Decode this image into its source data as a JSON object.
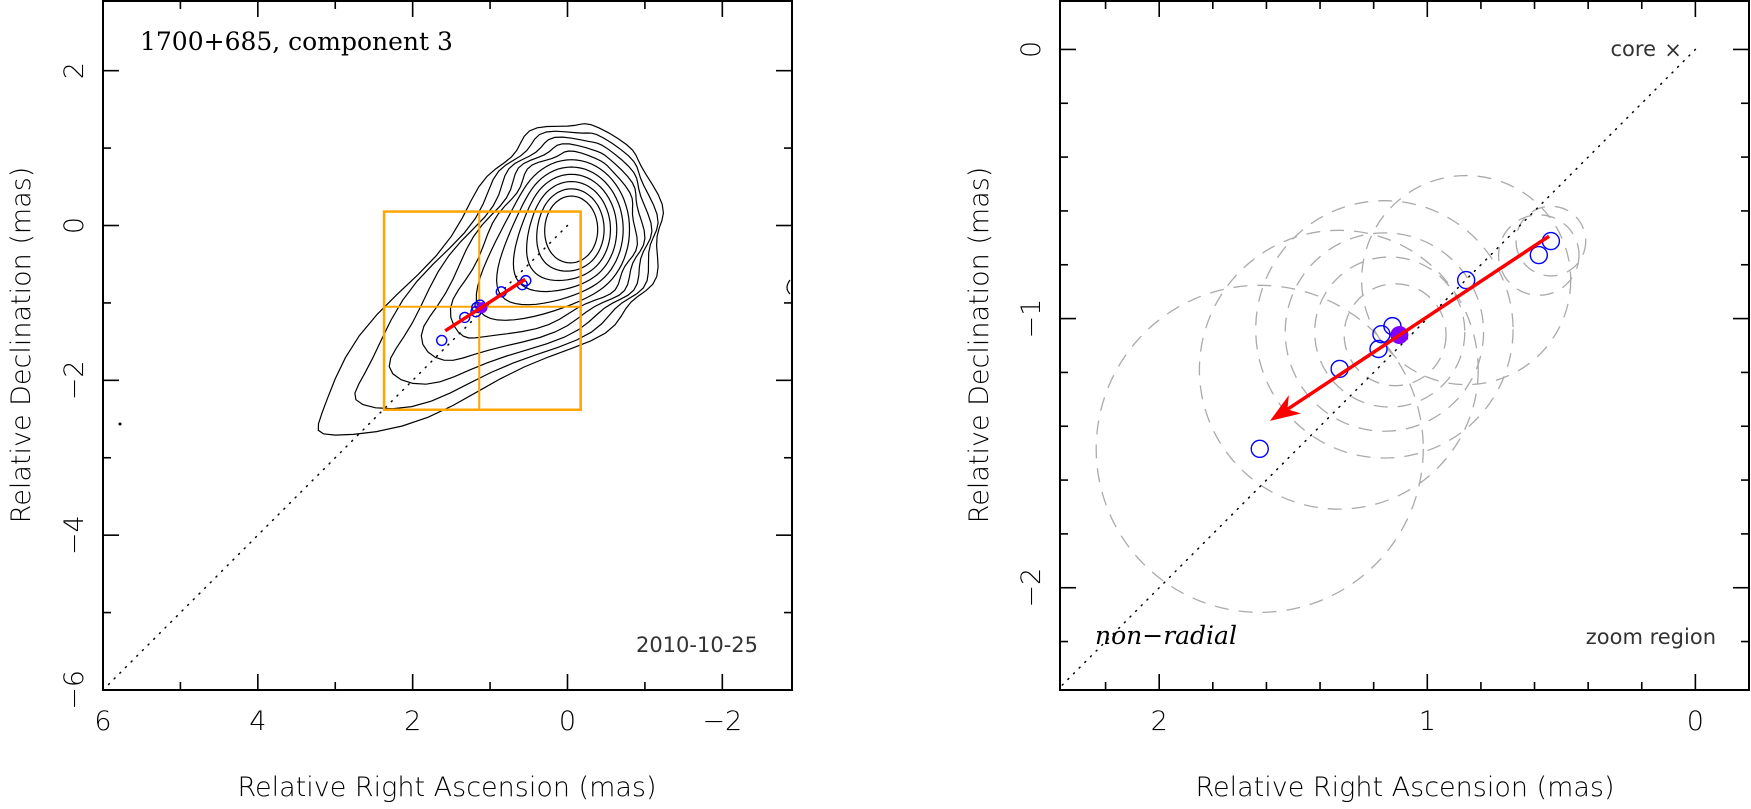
{
  "chart_data": [
    {
      "type": "scatter",
      "panel": "left",
      "title": "1700+685, component 3",
      "annotation": "2010-10-25",
      "xlabel": "Relative Right Ascension (mas)",
      "ylabel": "Relative Declination (mas)",
      "xlim": [
        6.0,
        -2.9
      ],
      "ylim": [
        -6.0,
        2.9
      ],
      "xticks": [
        6,
        4,
        2,
        0,
        -2
      ],
      "xtick_labels": [
        "6",
        "4",
        "2",
        "0",
        "−2"
      ],
      "yticks": [
        2,
        0,
        -2,
        -4,
        -6
      ],
      "ytick_labels": [
        "2",
        "0",
        "−2",
        "−4",
        "−6"
      ],
      "x_minor_step": 1,
      "y_minor_step": 1,
      "contour_peak": {
        "ra": -0.05,
        "dec": -0.05
      },
      "contour_levels": 11,
      "zoom_box": {
        "ra": [
          2.37,
          -0.17
        ],
        "dec": [
          0.18,
          -2.38
        ],
        "ra_mid": 1.14,
        "dec_mid": -1.05
      },
      "diagonal_line": {
        "from": {
          "ra": 0,
          "dec": 0
        },
        "to": {
          "ra": 6.0,
          "dec": -6.0
        },
        "style": "dotted"
      },
      "points": [
        {
          "ra": 1.625,
          "dec": -1.484
        },
        {
          "ra": 1.327,
          "dec": -1.187
        },
        {
          "ra": 1.182,
          "dec": -1.113
        },
        {
          "ra": 1.171,
          "dec": -1.058
        },
        {
          "ra": 1.13,
          "dec": -1.028
        },
        {
          "ra": 0.855,
          "dec": -0.857
        },
        {
          "ra": 0.584,
          "dec": -0.764
        },
        {
          "ra": 0.539,
          "dec": -0.712
        }
      ],
      "highlight_point": {
        "ra": 1.104,
        "dec": -1.061
      },
      "trend_line": {
        "from": {
          "ra": 0.546,
          "dec": -0.694
        },
        "to": {
          "ra": 1.58,
          "dec": -1.36
        }
      },
      "colors": {
        "points": "#0000ff",
        "highlight": "#8000ff",
        "trend": "#ff0000",
        "zoom_box": "#FFA500",
        "contours": "#000000"
      }
    },
    {
      "type": "scatter",
      "panel": "right",
      "title": "zoom region",
      "xlabel": "Relative Right Ascension (mas)",
      "ylabel": "Relative Declination (mas)",
      "xlim": [
        2.37,
        -0.2
      ],
      "ylim": [
        -2.38,
        0.18
      ],
      "xticks": [
        2,
        1,
        0
      ],
      "xtick_labels": [
        "2",
        "1",
        "0"
      ],
      "yticks": [
        0,
        -1,
        -2
      ],
      "ytick_labels": [
        "0",
        "−1",
        "−2"
      ],
      "x_minor_step": 0.2,
      "y_minor_step": 0.2,
      "annotations": {
        "core": "core",
        "core_marker": "×",
        "motion": "non−radial",
        "region": "zoom region"
      },
      "core": {
        "ra": 0,
        "dec": 0
      },
      "diagonal_line": {
        "from": {
          "ra": 0,
          "dec": 0
        },
        "to": {
          "ra": 2.37,
          "dec": -2.37
        },
        "style": "dotted"
      },
      "points": [
        {
          "ra": 1.625,
          "dec": -1.484
        },
        {
          "ra": 1.327,
          "dec": -1.187
        },
        {
          "ra": 1.182,
          "dec": -1.113
        },
        {
          "ra": 1.171,
          "dec": -1.058
        },
        {
          "ra": 1.13,
          "dec": -1.028
        },
        {
          "ra": 0.855,
          "dec": -0.857
        },
        {
          "ra": 0.584,
          "dec": -0.764
        },
        {
          "ra": 0.539,
          "dec": -0.712
        }
      ],
      "highlight_point": {
        "ra": 1.104,
        "dec": -1.061
      },
      "uncertainty_circles": [
        {
          "ra": 1.625,
          "dec": -1.484,
          "r": 0.61
        },
        {
          "ra": 0.855,
          "dec": -0.857,
          "r": 0.39
        },
        {
          "ra": 1.16,
          "dec": -1.04,
          "r": 0.48
        },
        {
          "ra": 1.16,
          "dec": -1.05,
          "r": 0.37
        },
        {
          "ra": 1.14,
          "dec": -1.05,
          "r": 0.28
        },
        {
          "ra": 1.12,
          "dec": -1.06,
          "r": 0.19
        },
        {
          "ra": 1.33,
          "dec": -1.19,
          "r": 0.52
        },
        {
          "ra": 0.584,
          "dec": -0.764,
          "r": 0.15
        },
        {
          "ra": 0.539,
          "dec": -0.712,
          "r": 0.13
        }
      ],
      "arrow": {
        "from": {
          "ra": 0.546,
          "dec": -0.694
        },
        "to": {
          "ra": 1.587,
          "dec": -1.38
        }
      },
      "colors": {
        "points": "#0000ff",
        "highlight": "#8000ff",
        "arrow": "#ff0000",
        "circles": "#aaaaaa"
      }
    }
  ]
}
